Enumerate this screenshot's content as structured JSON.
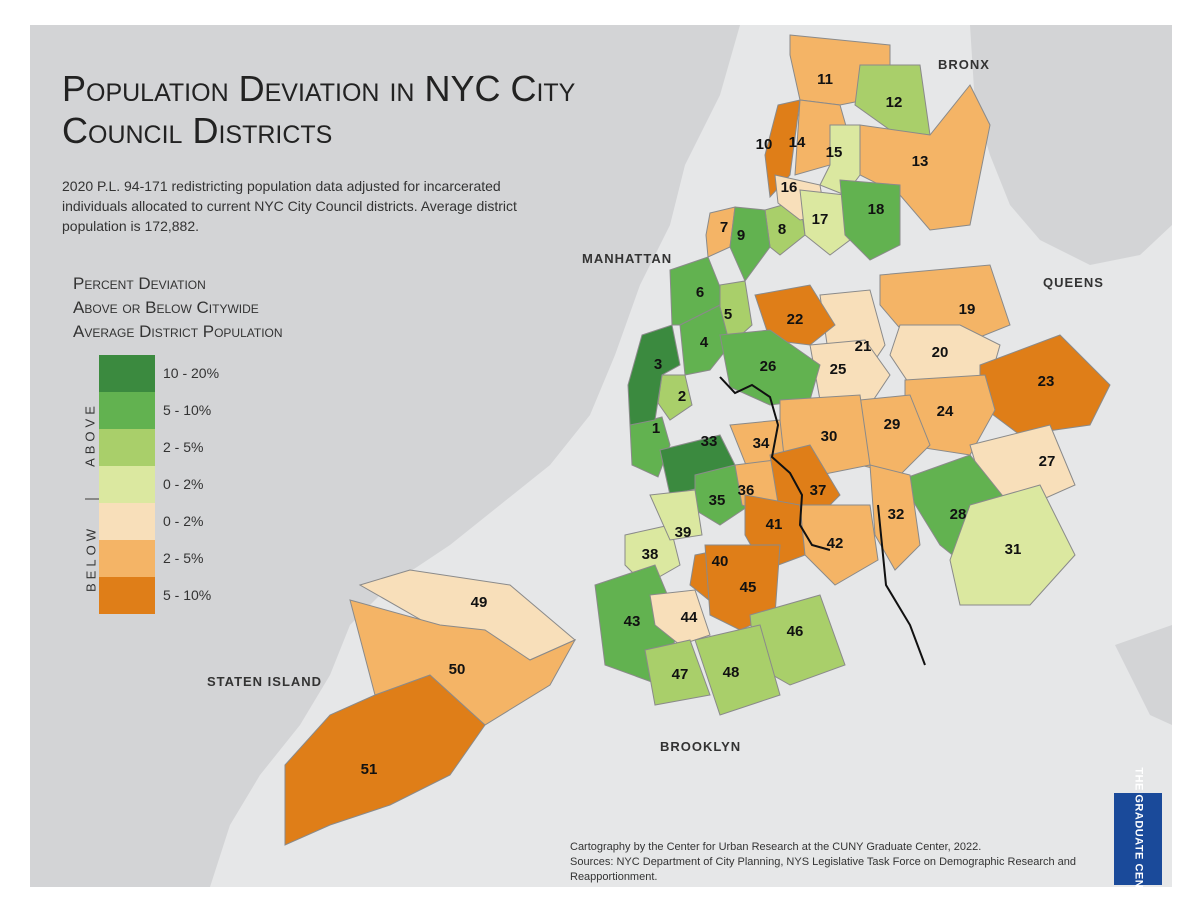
{
  "title": "Population Deviation in NYC City Council Districts",
  "subtitle": "2020 P.L. 94-171 redistricting population data adjusted for incarcerated individuals allocated to current NYC City Council districts. Average district population is 172,882.",
  "legend": {
    "title_lines": [
      "Percent Deviation",
      "Above or Below Citywide",
      "Average District Population"
    ],
    "above_label": "ABOVE",
    "below_label": "BELOW",
    "items": [
      {
        "label": "10 - 20%",
        "color": "#3b8a3f"
      },
      {
        "label": "5 - 10%",
        "color": "#62b250"
      },
      {
        "label": "2 - 5%",
        "color": "#a9cf6a"
      },
      {
        "label": "0 - 2%",
        "color": "#dbe8a0"
      },
      {
        "label": "0 - 2%",
        "color": "#f8dfba"
      },
      {
        "label": "2 - 5%",
        "color": "#f4b466"
      },
      {
        "label": "5 - 10%",
        "color": "#df7e18"
      }
    ]
  },
  "borough_labels": {
    "bronx": "Bronx",
    "manhattan": "Manhattan",
    "queens": "Queens",
    "staten_island": "Staten Island",
    "brooklyn": "Brooklyn"
  },
  "district_classes": {
    "1": 1,
    "2": 2,
    "3": 0,
    "4": 1,
    "5": 2,
    "6": 1,
    "7": 5,
    "8": 2,
    "9": 1,
    "10": 6,
    "11": 5,
    "12": 2,
    "13": 5,
    "14": 5,
    "15": 3,
    "16": 4,
    "17": 3,
    "18": 1,
    "19": 5,
    "20": 4,
    "21": 4,
    "22": 6,
    "23": 6,
    "24": 5,
    "25": 4,
    "26": 1,
    "27": 4,
    "28": 1,
    "29": 5,
    "30": 5,
    "31": 3,
    "32": 5,
    "33": 0,
    "34": 5,
    "35": 1,
    "36": 5,
    "37": 6,
    "38": 3,
    "39": 3,
    "40": 6,
    "41": 6,
    "42": 5,
    "43": 1,
    "44": 4,
    "45": 6,
    "46": 2,
    "47": 2,
    "48": 2,
    "49": 4,
    "50": 5,
    "51": 6
  },
  "credits": {
    "line1": "Cartography by the Center for Urban Research at the CUNY Graduate Center, 2022.",
    "line2": "Sources: NYC Department of City Planning, NYS Legislative Task Force on Demographic Research and Reapportionment."
  },
  "logo_text": "THE GRADUATE CENTER",
  "colors": {
    "water": "#e6e7e8",
    "land": "#d3d4d6",
    "district_border": "#8a8a8a"
  }
}
